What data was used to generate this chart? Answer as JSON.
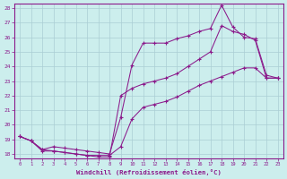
{
  "xlabel": "Windchill (Refroidissement éolien,°C)",
  "xlim": [
    0,
    23
  ],
  "ylim": [
    18,
    28
  ],
  "yticks": [
    18,
    19,
    20,
    21,
    22,
    23,
    24,
    25,
    26,
    27,
    28
  ],
  "xticks": [
    0,
    1,
    2,
    3,
    4,
    5,
    6,
    7,
    8,
    9,
    10,
    11,
    12,
    13,
    14,
    15,
    16,
    17,
    18,
    19,
    20,
    21,
    22,
    23
  ],
  "background_color": "#cceeed",
  "grid_color": "#aacdd4",
  "line_color": "#8b1a8b",
  "line1_x": [
    0,
    1,
    2,
    3,
    4,
    5,
    6,
    7,
    8,
    9,
    10,
    11,
    12,
    13,
    14,
    15,
    16,
    17,
    18,
    19,
    20,
    21,
    22,
    23
  ],
  "line1_y": [
    19.2,
    18.9,
    18.3,
    18.2,
    18.1,
    18.0,
    17.9,
    17.9,
    17.9,
    18.5,
    20.4,
    21.2,
    21.4,
    21.6,
    21.9,
    22.3,
    22.7,
    23.0,
    23.3,
    23.6,
    23.9,
    23.9,
    23.2,
    23.2
  ],
  "line2_x": [
    0,
    1,
    2,
    3,
    4,
    5,
    6,
    7,
    8,
    9,
    10,
    11,
    12,
    13,
    14,
    15,
    16,
    17,
    18,
    19,
    20,
    21,
    22,
    23
  ],
  "line2_y": [
    19.2,
    18.9,
    18.3,
    18.5,
    18.4,
    18.3,
    18.2,
    18.1,
    18.0,
    20.5,
    24.1,
    25.6,
    25.6,
    25.6,
    25.9,
    26.1,
    26.4,
    26.6,
    28.2,
    26.7,
    26.0,
    25.9,
    23.4,
    23.2
  ],
  "line3_x": [
    0,
    1,
    2,
    3,
    4,
    5,
    6,
    7,
    8,
    9,
    10,
    11,
    12,
    13,
    14,
    15,
    16,
    17,
    18,
    19,
    20,
    21,
    22,
    23
  ],
  "line3_y": [
    19.2,
    18.9,
    18.2,
    18.2,
    18.1,
    18.0,
    17.9,
    17.8,
    17.8,
    22.0,
    22.5,
    22.8,
    23.0,
    23.2,
    23.5,
    24.0,
    24.5,
    25.0,
    26.8,
    26.4,
    26.2,
    25.8,
    23.2,
    23.2
  ]
}
